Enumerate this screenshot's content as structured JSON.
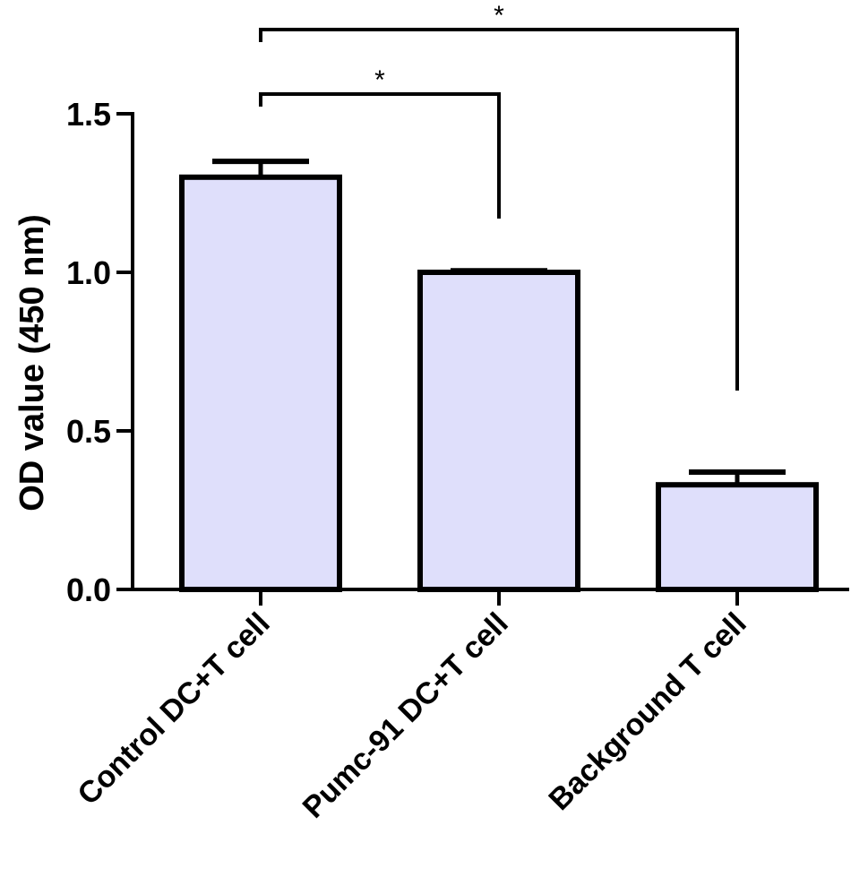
{
  "chart_data": {
    "type": "bar",
    "categories": [
      "Control DC+T cell",
      "Pumc-91 DC+T cell",
      "Background T cell"
    ],
    "values": [
      1.3,
      1.0,
      0.33
    ],
    "errors": [
      0.05,
      0.005,
      0.04
    ],
    "ylabel": "OD value (450 nm)",
    "ylim": [
      0,
      1.5
    ],
    "yticks": [
      0.0,
      0.5,
      1.0,
      1.5
    ],
    "ytick_labels": [
      "0.0",
      "0.5",
      "1.0",
      "1.5"
    ],
    "grid": false,
    "bar_color": "#dfdffb",
    "edge_color": "#000000",
    "significance": [
      {
        "from": 0,
        "to": 1,
        "label": "*"
      },
      {
        "from": 0,
        "to": 2,
        "label": "*"
      }
    ]
  }
}
